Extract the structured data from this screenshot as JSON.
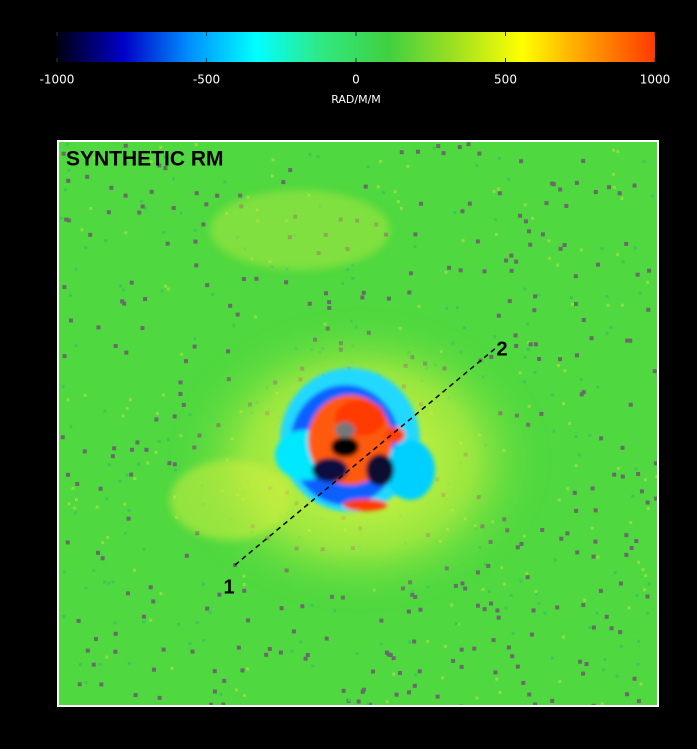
{
  "chart_data": {
    "type": "colormap",
    "title": "SYNTHETIC RM",
    "annotations": [
      "1",
      "2"
    ],
    "colorbar": {
      "label": "RAD/M/M",
      "lim": [
        -1000,
        1000
      ],
      "ticks": [
        -1000,
        -500,
        0,
        500,
        1000
      ],
      "colors": [
        "#000010",
        "#0000c8",
        "#0090ff",
        "#00ffff",
        "#30e880",
        "#40d040",
        "#a0e020",
        "#ffff00",
        "#ff9a00",
        "#ff3a00"
      ]
    }
  }
}
